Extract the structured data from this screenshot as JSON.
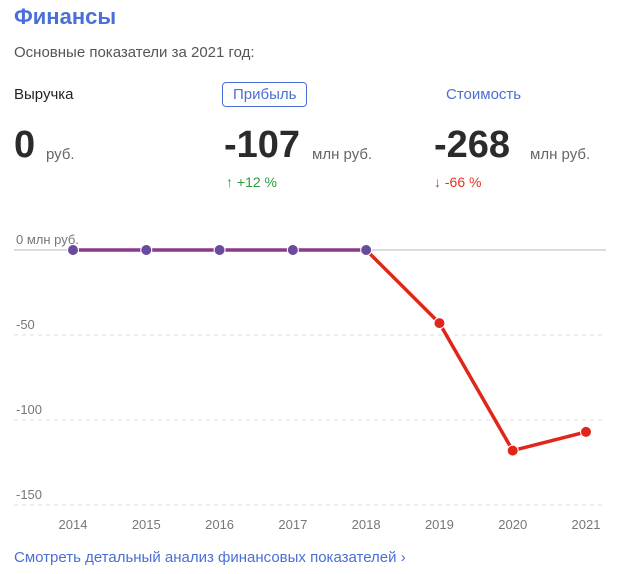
{
  "header": {
    "title": "Финансы",
    "subtitle": "Основные показатели за 2021 год:"
  },
  "metrics": [
    {
      "label": "Выручка",
      "value": "0",
      "unit": "руб.",
      "delta": ""
    },
    {
      "label": "Прибыль",
      "value": "-107",
      "unit": "млн руб.",
      "delta": "↑ +12 %"
    },
    {
      "label": "Стоимость",
      "value": "-268",
      "unit": "млн руб.",
      "delta": "↓ -66 %"
    }
  ],
  "footer": {
    "link": "Смотреть детальный анализ финансовых показателей ›"
  },
  "colors": {
    "accent": "#4a6fd6",
    "positive_line": "#8a3a8a",
    "negative_line": "#e0261a",
    "up": "#2a9d3a",
    "down": "#e0341f"
  },
  "chart_data": {
    "type": "line",
    "title": "",
    "xlabel": "",
    "ylabel": "",
    "x": [
      "2014",
      "2015",
      "2016",
      "2017",
      "2018",
      "2019",
      "2020",
      "2021"
    ],
    "series": [
      {
        "values": [
          0,
          0,
          0,
          0,
          0,
          -43,
          -118,
          -107
        ]
      }
    ],
    "y_ticks": [
      {
        "value": 0,
        "label": "0 млн руб."
      },
      {
        "value": -50,
        "label": "-50"
      },
      {
        "value": -100,
        "label": "-100"
      },
      {
        "value": -150,
        "label": "-150"
      }
    ],
    "ylim": [
      -150,
      0
    ],
    "grid": true,
    "legend": "none"
  }
}
